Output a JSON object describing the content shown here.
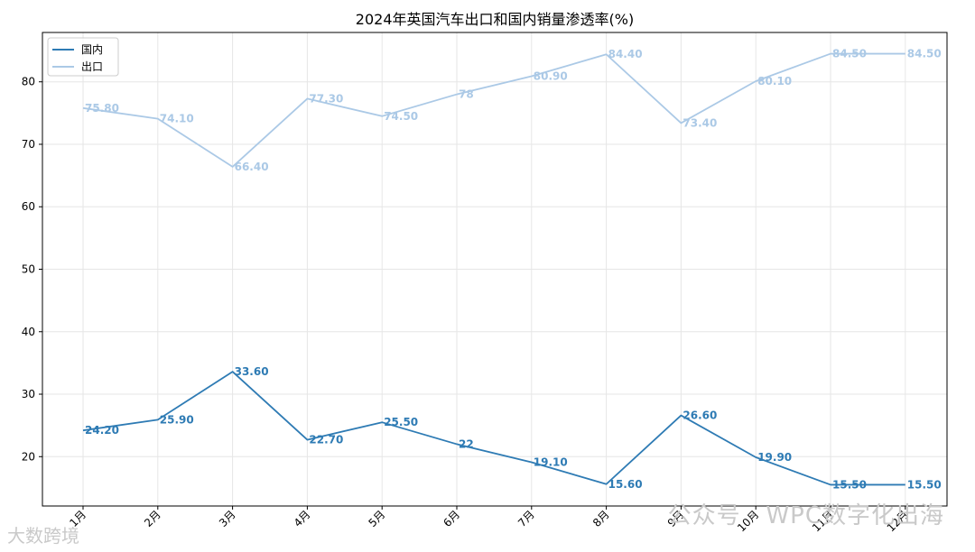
{
  "chart_data": {
    "type": "line",
    "title": "2024年英国汽车出口和国内销量渗透率(%)",
    "categories": [
      "1月",
      "2月",
      "3月",
      "4月",
      "5月",
      "6月",
      "7月",
      "8月",
      "9月",
      "10月",
      "11月",
      "12月"
    ],
    "series": [
      {
        "name": "国内",
        "color": "#2e7bb4",
        "values": [
          24.2,
          25.9,
          33.6,
          22.7,
          25.5,
          22,
          19.1,
          15.6,
          26.6,
          19.9,
          15.5,
          15.5
        ],
        "labels": [
          "24.20",
          "25.90",
          "33.60",
          "22.70",
          "25.50",
          "22",
          "19.10",
          "15.60",
          "26.60",
          "19.90",
          "15.50",
          "15.50"
        ]
      },
      {
        "name": "出口",
        "color": "#abc9e6",
        "values": [
          75.8,
          74.1,
          66.4,
          77.3,
          74.5,
          78,
          80.9,
          84.4,
          73.4,
          80.1,
          84.5,
          84.5
        ],
        "labels": [
          "75.80",
          "74.10",
          "66.40",
          "77.30",
          "74.50",
          "78",
          "80.90",
          "84.40",
          "73.40",
          "80.10",
          "84.50",
          "84.50"
        ]
      }
    ],
    "yticks": [
      20,
      30,
      40,
      50,
      60,
      70,
      80
    ],
    "ylim": [
      12.1,
      87.9
    ],
    "grid": true,
    "legend": "top-left"
  },
  "watermarks": {
    "text1": "公众号 · WPC数字化出海",
    "text2": "大数跨境"
  }
}
